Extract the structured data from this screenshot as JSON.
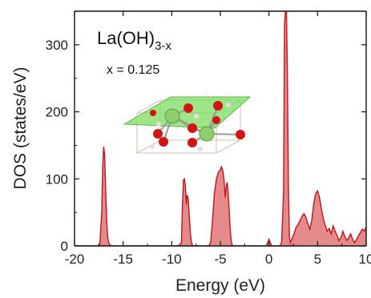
{
  "chart_data": {
    "type": "area",
    "xlabel": "Energy (eV)",
    "ylabel": "DOS (states/eV)",
    "xlim": [
      -20,
      10
    ],
    "ylim": [
      0,
      350
    ],
    "xticks": [
      -20,
      -15,
      -10,
      -5,
      0,
      5,
      10
    ],
    "yticks": [
      0,
      100,
      200,
      300
    ],
    "grid": false,
    "colors": {
      "line": "#c0141c",
      "fill": "#e07676",
      "plane": "#7ddc63",
      "la_atom": "#8fcf6a",
      "o_atom": "#d11414",
      "h_atom": "#f2d8d8"
    },
    "annotation": {
      "formula_main": "La(OH)",
      "formula_sub": "3-x",
      "x_label": "x = 0.125"
    },
    "inset": {
      "description_icon": "crystal-structure"
    },
    "series": [
      {
        "filled": true,
        "points": [
          [
            -20.0,
            0
          ],
          [
            -17.6,
            0
          ],
          [
            -17.4,
            2
          ],
          [
            -17.2,
            50
          ],
          [
            -17.1,
            120
          ],
          [
            -17.0,
            148
          ],
          [
            -16.9,
            135
          ],
          [
            -16.8,
            85
          ],
          [
            -16.7,
            40
          ],
          [
            -16.6,
            15
          ],
          [
            -16.5,
            6
          ],
          [
            -16.4,
            2
          ],
          [
            -16.2,
            0
          ],
          [
            -9.3,
            0
          ],
          [
            -9.0,
            5
          ],
          [
            -8.9,
            60
          ],
          [
            -8.8,
            98
          ],
          [
            -8.7,
            100
          ],
          [
            -8.6,
            90
          ],
          [
            -8.5,
            62
          ],
          [
            -8.45,
            74
          ],
          [
            -8.4,
            75
          ],
          [
            -8.3,
            70
          ],
          [
            -8.2,
            45
          ],
          [
            -8.1,
            22
          ],
          [
            -8.0,
            8
          ],
          [
            -7.9,
            2
          ],
          [
            -7.8,
            0
          ],
          [
            -6.2,
            0
          ],
          [
            -6.0,
            5
          ],
          [
            -5.8,
            40
          ],
          [
            -5.6,
            80
          ],
          [
            -5.4,
            100
          ],
          [
            -5.2,
            110
          ],
          [
            -5.0,
            113
          ],
          [
            -4.9,
            118
          ],
          [
            -4.8,
            115
          ],
          [
            -4.7,
            108
          ],
          [
            -4.6,
            95
          ],
          [
            -4.5,
            72
          ],
          [
            -4.4,
            88
          ],
          [
            -4.3,
            95
          ],
          [
            -4.2,
            80
          ],
          [
            -4.1,
            55
          ],
          [
            -4.0,
            28
          ],
          [
            -3.9,
            10
          ],
          [
            -3.8,
            2
          ],
          [
            -3.7,
            0
          ],
          [
            -0.3,
            0
          ],
          [
            -0.1,
            6
          ],
          [
            0.0,
            10
          ],
          [
            0.1,
            6
          ],
          [
            0.3,
            0
          ],
          [
            1.1,
            0
          ],
          [
            1.3,
            5
          ],
          [
            1.5,
            80
          ],
          [
            1.6,
            330
          ],
          [
            1.7,
            360
          ],
          [
            1.8,
            360
          ],
          [
            1.9,
            250
          ],
          [
            2.0,
            90
          ],
          [
            2.1,
            15
          ],
          [
            2.2,
            5
          ],
          [
            2.3,
            8
          ],
          [
            2.5,
            15
          ],
          [
            2.8,
            28
          ],
          [
            3.0,
            32
          ],
          [
            3.2,
            38
          ],
          [
            3.4,
            44
          ],
          [
            3.6,
            48
          ],
          [
            3.8,
            43
          ],
          [
            4.0,
            33
          ],
          [
            4.2,
            25
          ],
          [
            4.4,
            38
          ],
          [
            4.6,
            62
          ],
          [
            4.8,
            78
          ],
          [
            5.0,
            82
          ],
          [
            5.2,
            72
          ],
          [
            5.4,
            55
          ],
          [
            5.6,
            40
          ],
          [
            5.8,
            30
          ],
          [
            6.0,
            22
          ],
          [
            6.2,
            26
          ],
          [
            6.4,
            18
          ],
          [
            6.6,
            30
          ],
          [
            6.8,
            22
          ],
          [
            7.0,
            16
          ],
          [
            7.2,
            8
          ],
          [
            7.4,
            12
          ],
          [
            7.6,
            22
          ],
          [
            7.8,
            14
          ],
          [
            8.0,
            8
          ],
          [
            8.2,
            12
          ],
          [
            8.4,
            18
          ],
          [
            8.6,
            10
          ],
          [
            8.8,
            5
          ],
          [
            9.0,
            9
          ],
          [
            9.2,
            15
          ],
          [
            9.4,
            20
          ],
          [
            9.6,
            25
          ],
          [
            9.8,
            22
          ],
          [
            10.0,
            28
          ]
        ]
      }
    ]
  }
}
